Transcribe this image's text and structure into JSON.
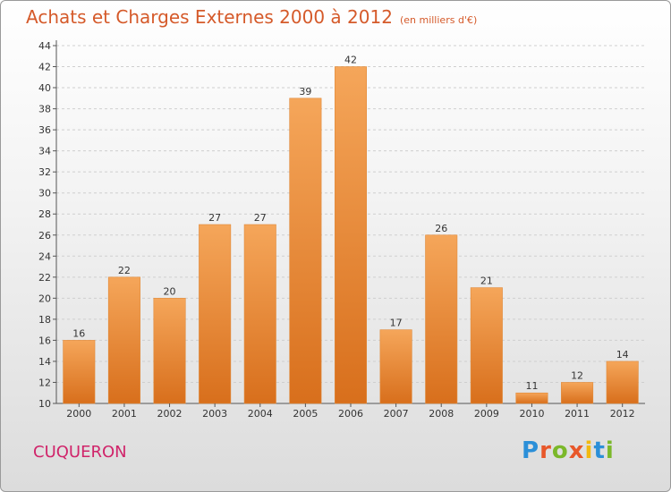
{
  "header": {
    "title": "Achats et Charges Externes 2000 à 2012",
    "unit": "(en milliers d'€)"
  },
  "footer": {
    "location": "CUQUERON",
    "brand": "Proxiti"
  },
  "colors": {
    "title": "#d55a2a",
    "location": "#d0246a",
    "bar_light": "#f5a65a",
    "bar_dark": "#d86f1c",
    "brand_letters": [
      "#2b8fd8",
      "#e8572a",
      "#7bb82a",
      "#e8572a",
      "#f2b90f",
      "#2b8fd8",
      "#7bb82a"
    ]
  },
  "chart_data": {
    "type": "bar",
    "title": "Achats et Charges Externes 2000 à 2012",
    "subtitle": "(en milliers d'€)",
    "categories": [
      "2000",
      "2001",
      "2002",
      "2003",
      "2004",
      "2005",
      "2006",
      "2007",
      "2008",
      "2009",
      "2010",
      "2011",
      "2012"
    ],
    "values": [
      16,
      22,
      20,
      27,
      27,
      39,
      42,
      17,
      26,
      21,
      11,
      12,
      14
    ],
    "ylim": [
      10,
      44
    ],
    "yticks": [
      10,
      12,
      14,
      16,
      18,
      20,
      22,
      24,
      26,
      28,
      30,
      32,
      34,
      36,
      38,
      40,
      42,
      44
    ],
    "grid": true
  }
}
